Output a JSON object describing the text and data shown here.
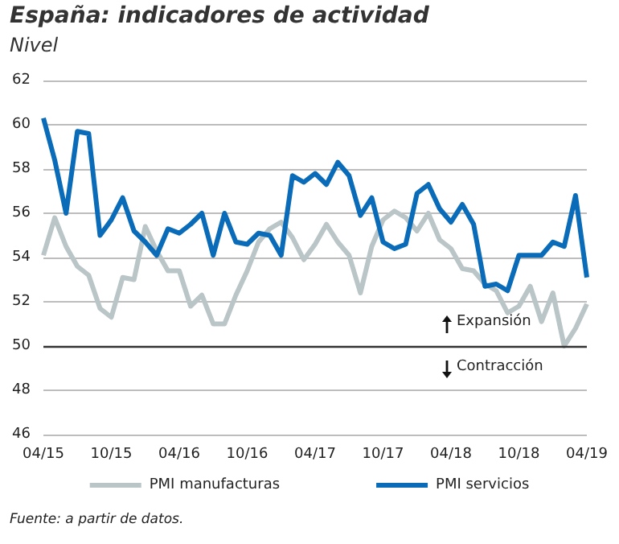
{
  "chart_data": {
    "type": "line",
    "title": "España: indicadores de actividad",
    "subtitle": "Nivel",
    "categories": [
      "04/15",
      null,
      null,
      null,
      null,
      null,
      "10/15",
      null,
      null,
      null,
      null,
      null,
      "04/16",
      null,
      null,
      null,
      null,
      null,
      "10/16",
      null,
      null,
      null,
      null,
      null,
      "04/17",
      null,
      null,
      null,
      null,
      null,
      "10/17",
      null,
      null,
      null,
      null,
      null,
      "04/18",
      null,
      null,
      null,
      null,
      null,
      "10/18",
      null,
      null,
      null,
      null,
      null,
      "04/19"
    ],
    "series": [
      {
        "name": "PMI manufacturas",
        "color": "#b9c5c7",
        "values": [
          54.1,
          55.8,
          54.5,
          53.6,
          53.2,
          51.7,
          51.3,
          53.1,
          53.0,
          55.4,
          54.3,
          53.4,
          53.4,
          51.8,
          52.3,
          51.0,
          51.0,
          52.3,
          53.4,
          54.7,
          55.3,
          55.6,
          54.9,
          53.9,
          54.6,
          55.5,
          54.7,
          54.1,
          52.4,
          54.5,
          55.7,
          56.1,
          55.8,
          55.2,
          56.0,
          54.8,
          54.4,
          53.5,
          53.4,
          52.8,
          52.5,
          51.5,
          51.8,
          52.7,
          51.1,
          52.4,
          50.0,
          50.8,
          51.9
        ]
      },
      {
        "name": "PMI servicios",
        "color": "#0a6cb8",
        "values": [
          60.3,
          58.4,
          56.0,
          59.7,
          59.6,
          55.0,
          55.7,
          56.7,
          55.2,
          54.7,
          54.1,
          55.3,
          55.1,
          55.5,
          56.0,
          54.1,
          56.0,
          54.7,
          54.6,
          55.1,
          55.0,
          54.1,
          57.7,
          57.4,
          57.8,
          57.3,
          58.3,
          57.7,
          55.9,
          56.7,
          54.7,
          54.4,
          54.6,
          56.9,
          57.3,
          56.2,
          55.6,
          56.4,
          55.5,
          52.7,
          52.8,
          52.5,
          54.1,
          54.1,
          54.1,
          54.7,
          54.5,
          56.8,
          53.1
        ]
      }
    ],
    "ylim": [
      46,
      62
    ],
    "yticks": [
      46,
      48,
      50,
      52,
      54,
      56,
      58,
      60,
      62
    ],
    "grid": "y",
    "legend": "bottom",
    "line_style": "solid",
    "marker": "none",
    "ref_lines": [
      {
        "axis": "y",
        "value": 50,
        "color": "#333333"
      }
    ],
    "annotations": [
      "Expansión",
      "Contracción",
      "Fuente: a partir de datos."
    ]
  }
}
